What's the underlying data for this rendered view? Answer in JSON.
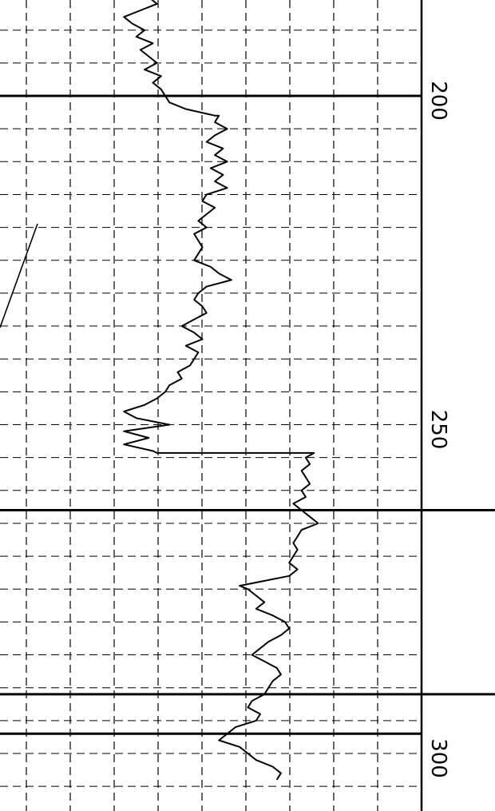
{
  "chart_data": {
    "type": "line",
    "title": "",
    "xlabel": "",
    "ylabel": "",
    "ylim": [
      176,
      304
    ],
    "xlim": [
      0,
      100
    ],
    "grid": true,
    "y_ticks_labeled": [
      {
        "value": 200,
        "text": "200"
      },
      {
        "value": 250,
        "text": "250"
      },
      {
        "value": 300,
        "text": "300"
      }
    ],
    "series": [
      {
        "points": [
          [
            30,
            176
          ],
          [
            38,
            177
          ],
          [
            42,
            178
          ],
          [
            41,
            179
          ],
          [
            46,
            180
          ],
          [
            44,
            181
          ],
          [
            40,
            182
          ],
          [
            38,
            183
          ],
          [
            39,
            184
          ],
          [
            36,
            185
          ],
          [
            38,
            186
          ],
          [
            34,
            187
          ],
          [
            30,
            188
          ],
          [
            32,
            189
          ],
          [
            35,
            190
          ],
          [
            33,
            191
          ],
          [
            37,
            192
          ],
          [
            34,
            193
          ],
          [
            36,
            194
          ],
          [
            38,
            195
          ],
          [
            35,
            196
          ],
          [
            39,
            197
          ],
          [
            37,
            198
          ],
          [
            39,
            199
          ],
          [
            40,
            200
          ],
          [
            41,
            201
          ],
          [
            45,
            202
          ],
          [
            52,
            203
          ],
          [
            53,
            203
          ],
          [
            52,
            204
          ],
          [
            55,
            205
          ],
          [
            52,
            206
          ],
          [
            50,
            207
          ],
          [
            54,
            208
          ],
          [
            52,
            209
          ],
          [
            55,
            210
          ],
          [
            51,
            211
          ],
          [
            54,
            212
          ],
          [
            52,
            213
          ],
          [
            55,
            214
          ],
          [
            50,
            215
          ],
          [
            49,
            216
          ],
          [
            52,
            217
          ],
          [
            50,
            218
          ],
          [
            48,
            219
          ],
          [
            50,
            220
          ],
          [
            47,
            221
          ],
          [
            48,
            222
          ],
          [
            49,
            223
          ],
          [
            48,
            224
          ],
          [
            47,
            225
          ],
          [
            51,
            226
          ],
          [
            53,
            227
          ],
          [
            56,
            228
          ],
          [
            50,
            229
          ],
          [
            48,
            230
          ],
          [
            47,
            231
          ],
          [
            49,
            232
          ],
          [
            50,
            233
          ],
          [
            47,
            234
          ],
          [
            44,
            235
          ],
          [
            47,
            236
          ],
          [
            49,
            237
          ],
          [
            45,
            238
          ],
          [
            48,
            239
          ],
          [
            47,
            240
          ],
          [
            46,
            241
          ],
          [
            43,
            242
          ],
          [
            44,
            243
          ],
          [
            41,
            244
          ],
          [
            40,
            245
          ],
          [
            38,
            246
          ],
          [
            35,
            247
          ],
          [
            30,
            248
          ],
          [
            33,
            249
          ],
          [
            41,
            250
          ],
          [
            30,
            251
          ],
          [
            36,
            252
          ],
          [
            30,
            253
          ],
          [
            37,
            254
          ],
          [
            38,
            254.3
          ],
          [
            76,
            254.3
          ],
          [
            74,
            255
          ],
          [
            75,
            256
          ],
          [
            73,
            257
          ],
          [
            74,
            258
          ],
          [
            75,
            259
          ],
          [
            73,
            260
          ],
          [
            74,
            261
          ],
          [
            71,
            262
          ],
          [
            73,
            263
          ],
          [
            75,
            264
          ],
          [
            77,
            265
          ],
          [
            73,
            266
          ],
          [
            72,
            267
          ],
          [
            71,
            268
          ],
          [
            72,
            269
          ],
          [
            71,
            270
          ],
          [
            70,
            271
          ],
          [
            72,
            272
          ],
          [
            70,
            273
          ],
          [
            62,
            274
          ],
          [
            58,
            274.5
          ],
          [
            60,
            275
          ],
          [
            62,
            276
          ],
          [
            64,
            277
          ],
          [
            62,
            278
          ],
          [
            66,
            279
          ],
          [
            69,
            280
          ],
          [
            70,
            281
          ],
          [
            68,
            282
          ],
          [
            65,
            283
          ],
          [
            63,
            284
          ],
          [
            61,
            285
          ],
          [
            64,
            286
          ],
          [
            67,
            287
          ],
          [
            68,
            288
          ],
          [
            66,
            289
          ],
          [
            65,
            290
          ],
          [
            64,
            291
          ],
          [
            61,
            292
          ],
          [
            60,
            293
          ],
          [
            63,
            294
          ],
          [
            62,
            295
          ],
          [
            57,
            296
          ],
          [
            55,
            297
          ],
          [
            53,
            298
          ],
          [
            58,
            299
          ],
          [
            60,
            300
          ],
          [
            62,
            301
          ],
          [
            66,
            302
          ],
          [
            68,
            303
          ],
          [
            67,
            304
          ]
        ]
      }
    ]
  }
}
